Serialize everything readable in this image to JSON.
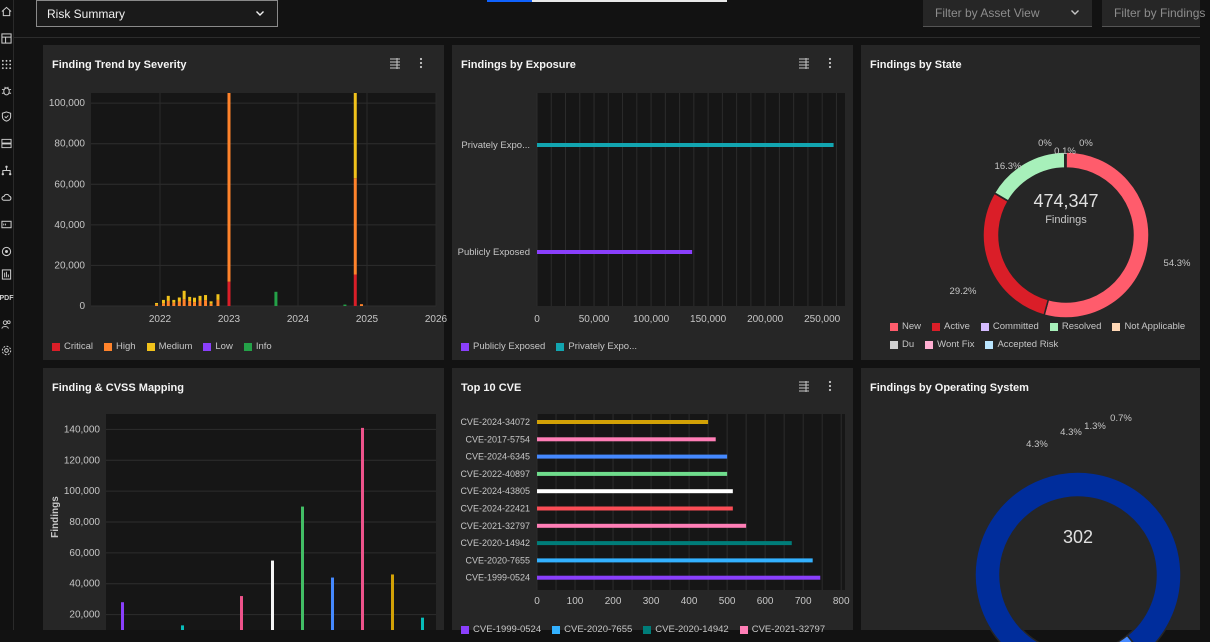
{
  "sidebar": {
    "icons": [
      "home-icon",
      "dashboard-icon",
      "apps-icon",
      "bug-icon",
      "shield-icon",
      "server-icon",
      "network-icon",
      "cloud-icon",
      "storage-icon",
      "policy-icon",
      "report-icon",
      "pdf-icon",
      "users-icon",
      "settings-icon"
    ],
    "pdf_label": "PDF"
  },
  "topbar": {
    "view_select": "Risk Summary",
    "filter_asset": "Filter by Asset View",
    "filter_findings": "Filter by Findings"
  },
  "colors": {
    "critical": "#da1e28",
    "high": "#ff832b",
    "medium": "#f1c21b",
    "low": "#8a3ffc",
    "info": "#24a148",
    "teal": "#12a5b0",
    "purple": "#8a3ffc"
  },
  "cards": {
    "trend": {
      "title": "Finding Trend by Severity",
      "chart_data": {
        "type": "bar",
        "stacked": true,
        "x_ticks": [
          "2022",
          "2023",
          "2024",
          "2025",
          "2026"
        ],
        "y_ticks": [
          "0",
          "20,000",
          "40,000",
          "60,000",
          "80,000",
          "100,000"
        ],
        "ylim": [
          0,
          105000
        ],
        "legend": [
          "Critical",
          "High",
          "Medium",
          "Low",
          "Info"
        ],
        "bars": [
          {
            "x": 2021.95,
            "critical": 0,
            "high": 600,
            "medium": 900,
            "low": 0,
            "info": 0
          },
          {
            "x": 2022.05,
            "critical": 0,
            "high": 1300,
            "medium": 1700,
            "low": 0,
            "info": 0
          },
          {
            "x": 2022.12,
            "critical": 0,
            "high": 2500,
            "medium": 2500,
            "low": 0,
            "info": 0
          },
          {
            "x": 2022.2,
            "critical": 0,
            "high": 1600,
            "medium": 1400,
            "low": 0,
            "info": 0
          },
          {
            "x": 2022.28,
            "critical": 0,
            "high": 2200,
            "medium": 2000,
            "low": 0,
            "info": 0
          },
          {
            "x": 2022.35,
            "critical": 0,
            "high": 3400,
            "medium": 4100,
            "low": 0,
            "info": 0
          },
          {
            "x": 2022.43,
            "critical": 0,
            "high": 2400,
            "medium": 2100,
            "low": 0,
            "info": 0
          },
          {
            "x": 2022.5,
            "critical": 0,
            "high": 1900,
            "medium": 2200,
            "low": 0,
            "info": 0
          },
          {
            "x": 2022.58,
            "critical": 0,
            "high": 2700,
            "medium": 2300,
            "low": 0,
            "info": 0
          },
          {
            "x": 2022.66,
            "critical": 0,
            "high": 2900,
            "medium": 2500,
            "low": 0,
            "info": 0
          },
          {
            "x": 2022.74,
            "critical": 0,
            "high": 1100,
            "medium": 1200,
            "low": 0,
            "info": 0
          },
          {
            "x": 2022.84,
            "critical": 0,
            "high": 3000,
            "medium": 2800,
            "low": 0,
            "info": 0
          },
          {
            "x": 2023.0,
            "critical": 12000,
            "high": 93000,
            "medium": 0,
            "low": 0,
            "info": 0
          },
          {
            "x": 2023.68,
            "critical": 0,
            "high": 0,
            "medium": 0,
            "low": 0,
            "info": 7000
          },
          {
            "x": 2024.68,
            "critical": 0,
            "high": 0,
            "medium": 0,
            "low": 0,
            "info": 700
          },
          {
            "x": 2024.83,
            "critical": 15500,
            "high": 47500,
            "medium": 42000,
            "low": 0,
            "info": 0
          },
          {
            "x": 2024.92,
            "critical": 0,
            "high": 900,
            "medium": 0,
            "low": 0,
            "info": 0
          }
        ],
        "xlim": [
          2021.0,
          2026.0
        ]
      }
    },
    "exposure": {
      "title": "Findings by Exposure",
      "chart_data": {
        "type": "bar",
        "orientation": "horizontal",
        "categories": [
          "Privately Expo...",
          "Publicly Exposed"
        ],
        "values": [
          260000,
          136000
        ],
        "series_colors": [
          "#12a5b0",
          "#8a3ffc"
        ],
        "x_ticks": [
          "0",
          "50,000",
          "100,000",
          "150,000",
          "200,000",
          "250,000"
        ],
        "xlim": [
          0,
          270000
        ],
        "legend": [
          "Publicly Exposed",
          "Privately Expo..."
        ]
      }
    },
    "state": {
      "title": "Findings by State",
      "center_value": "474,347",
      "center_label": "Findings",
      "chart_data": {
        "type": "pie",
        "donut": true,
        "slices": [
          {
            "label": "New",
            "value": 54.3,
            "text": "54.3%",
            "color": "#ff5c6c"
          },
          {
            "label": "Active",
            "value": 29.2,
            "text": "29.2%",
            "color": "#da1e28"
          },
          {
            "label": "Committed",
            "value": 0.05,
            "text": "",
            "color": "#d4bbff"
          },
          {
            "label": "Resolved",
            "value": 16.3,
            "text": "16.3%",
            "color": "#a7f0ba"
          },
          {
            "label": "Not Applicable",
            "value": 0.05,
            "text": "0%",
            "color": "#ffd7b5"
          },
          {
            "label": "Du",
            "value": 0.05,
            "text": "0.1%",
            "color": "#cfcfcf"
          },
          {
            "label": "Wont Fix",
            "value": 0.05,
            "text": "0%",
            "color": "#ffafd2"
          },
          {
            "label": "Accepted Risk",
            "value": 0.1,
            "text": "",
            "color": "#bae6ff"
          }
        ]
      }
    },
    "cvss": {
      "title": "Finding & CVSS Mapping",
      "chart_data": {
        "type": "bar",
        "ylabel": "Findings",
        "y_ticks": [
          "20,000",
          "40,000",
          "60,000",
          "80,000",
          "100,000",
          "120,000",
          "140,000"
        ],
        "ylim": [
          10000,
          150000
        ],
        "bars": [
          {
            "value": 28000,
            "color": "#8a3ffc"
          },
          {
            "value": 13000,
            "color": "#08bdba"
          },
          {
            "value": 32000,
            "color": "#ee538b"
          },
          {
            "value": 55000,
            "color": "#f4f4f4"
          },
          {
            "value": 90000,
            "color": "#42be65"
          },
          {
            "value": 44000,
            "color": "#4589ff"
          },
          {
            "value": 141000,
            "color": "#ee538b"
          },
          {
            "value": 46000,
            "color": "#d2a106"
          },
          {
            "value": 18000,
            "color": "#08bdba"
          }
        ]
      }
    },
    "cve": {
      "title": "Top 10 CVE",
      "chart_data": {
        "type": "bar",
        "orientation": "horizontal",
        "categories": [
          "CVE-2024-34072",
          "CVE-2017-5754",
          "CVE-2024-6345",
          "CVE-2022-40897",
          "CVE-2024-43805",
          "CVE-2024-22421",
          "CVE-2021-32797",
          "CVE-2020-14942",
          "CVE-2020-7655",
          "CVE-1999-0524"
        ],
        "values": [
          450,
          470,
          500,
          500,
          515,
          515,
          550,
          670,
          725,
          745
        ],
        "colors": [
          "#d2a106",
          "#ff7eb6",
          "#4589ff",
          "#6fdc8c",
          "#ffffff",
          "#fa4d56",
          "#ff7eb6",
          "#007d79",
          "#33b1ff",
          "#8a3ffc"
        ],
        "x_ticks": [
          "0",
          "100",
          "200",
          "300",
          "400",
          "500",
          "600",
          "700",
          "800"
        ],
        "xlim": [
          0,
          810
        ],
        "legend": [
          "CVE-1999-0524",
          "CVE-2020-7655",
          "CVE-2020-14942",
          "CVE-2021-32797"
        ]
      }
    },
    "os": {
      "title": "Findings by Operating System",
      "center_value": "302",
      "chart_data": {
        "type": "pie",
        "donut": true,
        "slices": [
          {
            "value": 89.4,
            "text": "",
            "color": "#002d9c"
          },
          {
            "value": 4.3,
            "text": "4.3%",
            "color": "#4589ff"
          },
          {
            "value": 4.3,
            "text": "4.3%",
            "color": "#0f62fe"
          },
          {
            "value": 1.3,
            "text": "1.3%",
            "color": "#0043ce"
          },
          {
            "value": 0.7,
            "text": "0.7%",
            "color": "#d0e2ff"
          }
        ]
      }
    }
  }
}
